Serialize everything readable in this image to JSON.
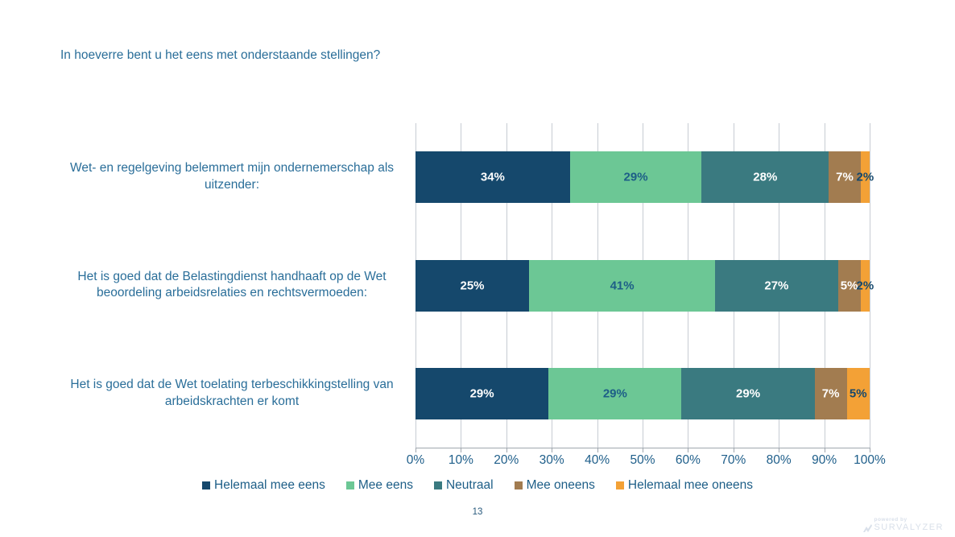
{
  "title": "In hoeverre bent u het eens met onderstaande stellingen?",
  "page_number": "13",
  "footer_logo": {
    "powered_by": "powered by",
    "brand": "SURVALYZER"
  },
  "chart_data": {
    "type": "bar",
    "orientation": "horizontal",
    "stacked": true,
    "grid": true,
    "legend_position": "bottom",
    "xlim": [
      0,
      100
    ],
    "x_ticks": [
      "0%",
      "10%",
      "20%",
      "30%",
      "40%",
      "50%",
      "60%",
      "70%",
      "80%",
      "90%",
      "100%"
    ],
    "categories": [
      "Wet- en regelgeving belemmert mijn ondernemerschap als uitzender:",
      "Het is goed dat de Belastingdienst handhaaft op de Wet beoordeling arbeidsrelaties en rechtsvermoeden:",
      "Het is goed dat de Wet toelating terbeschikkingstelling van arbeidskrachten er komt"
    ],
    "series": [
      {
        "name": "Helemaal mee eens",
        "color": "#15486C",
        "label_color": "#FFFFFF",
        "values": [
          34,
          25,
          29
        ]
      },
      {
        "name": "Mee eens",
        "color": "#6CC795",
        "label_color": "#1D5E87",
        "values": [
          29,
          41,
          29
        ]
      },
      {
        "name": "Neutraal",
        "color": "#3A7A80",
        "label_color": "#FFFFFF",
        "values": [
          28,
          27,
          29
        ]
      },
      {
        "name": "Mee oneens",
        "color": "#A27C50",
        "label_color": "#FFFFFF",
        "values": [
          7,
          5,
          7
        ]
      },
      {
        "name": "Helemaal mee oneens",
        "color": "#F3A136",
        "label_color": "#15486C",
        "values": [
          2,
          2,
          5
        ]
      }
    ]
  }
}
